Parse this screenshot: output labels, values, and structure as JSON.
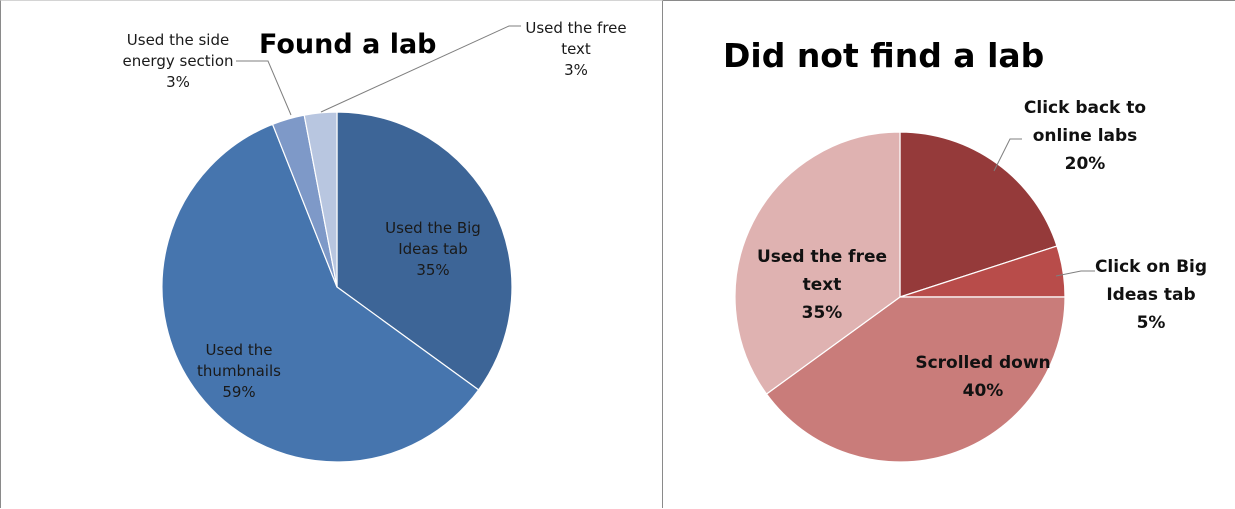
{
  "chart_data": [
    {
      "type": "pie",
      "title": "Found a lab",
      "slices": [
        {
          "label": "Used the Big Ideas tab",
          "lines": [
            "Used the Big",
            "Ideas tab"
          ],
          "pct_label": "35%",
          "value": 35,
          "color": "#3d6597"
        },
        {
          "label": "Used the thumbnails",
          "lines": [
            "Used the",
            "thumbnails"
          ],
          "pct_label": "59%",
          "value": 59,
          "color": "#4675ae"
        },
        {
          "label": "Used the side energy section",
          "lines": [
            "Used the side",
            "energy section"
          ],
          "pct_label": "3%",
          "value": 3,
          "color": "#7e99c8"
        },
        {
          "label": "Used the free text",
          "lines": [
            "Used the free",
            "text"
          ],
          "pct_label": "3%",
          "value": 3,
          "color": "#b8c6e0"
        }
      ]
    },
    {
      "type": "pie",
      "title": "Did not find a lab",
      "slices": [
        {
          "label": "Click back to online labs",
          "lines": [
            "Click back to",
            "online labs"
          ],
          "pct_label": "20%",
          "value": 20,
          "color": "#953a3a"
        },
        {
          "label": "Click on Big Ideas tab",
          "lines": [
            "Click on Big",
            "Ideas tab"
          ],
          "pct_label": "5%",
          "value": 5,
          "color": "#b84c4a"
        },
        {
          "label": "Scrolled down",
          "lines": [
            "Scrolled down"
          ],
          "pct_label": "40%",
          "value": 40,
          "color": "#c97c7a"
        },
        {
          "label": "Used the free text",
          "lines": [
            "Used the free",
            "text"
          ],
          "pct_label": "35%",
          "value": 35,
          "color": "#dfb2b1"
        }
      ]
    }
  ]
}
